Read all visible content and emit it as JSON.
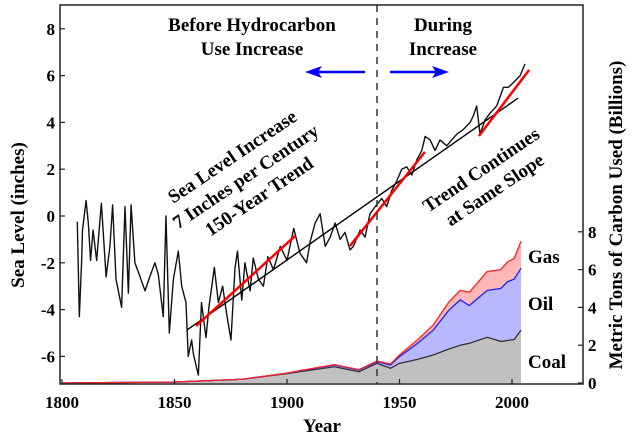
{
  "chart_data": [
    {
      "type": "line",
      "xlabel": "Year",
      "ylabel": "Sea Level (inches)",
      "xlim": [
        1800,
        2032
      ],
      "ylim": [
        -7.2,
        9
      ],
      "xticks": [
        "1800",
        "1850",
        "1900",
        "1950",
        "2000"
      ],
      "yticks": [
        "-6",
        "-4",
        "-2",
        "0",
        "2",
        "4",
        "6",
        "8"
      ],
      "grid": false,
      "sea_level": {
        "x": [
          1806.8,
          1807.7,
          1808.7,
          1809.1,
          1810.7,
          1811.7,
          1812.7,
          1813.8,
          1815.4,
          1817.5,
          1819.6,
          1821.3,
          1822.5,
          1824,
          1826.5,
          1828,
          1829.5,
          1830.7,
          1832.4,
          1834.7,
          1836.9,
          1839,
          1841.3,
          1842.8,
          1845,
          1846.2,
          1847.7,
          1849.5,
          1851.7,
          1853.2,
          1855.1,
          1856.1,
          1857.6,
          1858.4,
          1860.6,
          1862,
          1864,
          1865.3,
          1867.7,
          1869.5,
          1871.4,
          1873.2,
          1875.1,
          1876.9,
          1878,
          1879.9,
          1881.3,
          1883.6,
          1885,
          1887.3,
          1889.5,
          1891.5,
          1894,
          1897,
          1900,
          1903,
          1905.8,
          1908.7,
          1910.3,
          1912.5,
          1914.7,
          1917,
          1919.2,
          1921.4,
          1923.6,
          1925.8,
          1928,
          1929.5,
          1932.5,
          1934.7,
          1936.9,
          1939.2,
          1942.1,
          1944.3,
          1946.6,
          1948.8,
          1951,
          1953.2,
          1955.5,
          1957.7,
          1959.9,
          1961.4,
          1963.6,
          1965.8,
          1968,
          1971,
          1973.2,
          1975.5,
          1978.4,
          1981.4,
          1982.9,
          1984.3,
          1985.8,
          1988,
          1990.3,
          1993.2,
          1996.2,
          1998.4,
          2000.6,
          2003.6,
          2005.8
        ],
        "y": [
          -0.24,
          -4.3,
          -2.0,
          -0.6,
          0.66,
          -0.3,
          -1.9,
          -0.6,
          -1.9,
          0.54,
          -2.6,
          -1.3,
          0.47,
          -2.7,
          -3.9,
          0.4,
          -3.3,
          0.47,
          -2.0,
          -2.6,
          -3.2,
          -2.6,
          -2.0,
          -2.5,
          -4.3,
          0.0,
          -5.0,
          -2.7,
          -1.5,
          -3.0,
          -3.7,
          -6.0,
          -5.3,
          -5.9,
          -6.8,
          -3.7,
          -5.2,
          -3.9,
          -2.2,
          -3.7,
          -3.0,
          -4.2,
          -5.3,
          -2.2,
          -1.5,
          -3.6,
          -2.0,
          -3.2,
          -1.8,
          -2.7,
          -3.0,
          -1.74,
          -2.3,
          -1.3,
          -1.9,
          -0.53,
          -1.6,
          -2.0,
          -1.1,
          -0.3,
          0.1,
          -1.3,
          -0.9,
          -0.3,
          -1.0,
          -0.7,
          -1.45,
          -1.3,
          -0.6,
          -0.9,
          0.1,
          0.4,
          0.75,
          0.4,
          1.1,
          1.5,
          2.0,
          2.1,
          1.75,
          2.4,
          2.8,
          3.4,
          3.25,
          2.8,
          3.25,
          3.0,
          3.25,
          3.5,
          3.7,
          4.0,
          4.3,
          4.7,
          3.5,
          4.1,
          4.4,
          4.7,
          5.5,
          5.5,
          5.7,
          6.0,
          6.5
        ]
      },
      "trend_line": {
        "x": [
          1855.6,
          2002.7
        ],
        "y": [
          -4.87,
          5.04
        ]
      },
      "segment_trends": [
        {
          "x": [
            1859.6,
            1903.6
          ],
          "y": [
            -4.7,
            -0.85
          ]
        },
        {
          "x": [
            1928,
            1961.3
          ],
          "y": [
            -1.28,
            2.74
          ]
        },
        {
          "x": [
            1985.3,
            2007.6
          ],
          "y": [
            3.42,
            6.24
          ]
        }
      ],
      "divider_year": 1940,
      "annotations": {
        "before_line1": "Before Hydrocarbon",
        "before_line2": "Use Increase",
        "during_line1": "During",
        "during_line2": "Increase",
        "trend_line1": "Sea Level Increase",
        "trend_line2": "7 Inches per Century",
        "trend_line3": "150-Year Trend",
        "continue_line1": "Trend Continues",
        "continue_line2": "at Same Slope"
      },
      "colors": {
        "sea_level": "#000000",
        "segment_trend": "#ff0000",
        "arrows": "#0000ff"
      }
    },
    {
      "type": "area",
      "stacked": true,
      "ylabel": "Metric Tons of Carbon Used (Billions)",
      "ylim": [
        0,
        8
      ],
      "yticks": [
        "0",
        "2",
        "4",
        "6",
        "8"
      ],
      "x": [
        1800,
        1850,
        1880,
        1900,
        1906,
        1921,
        1932,
        1940,
        1946,
        1950,
        1958,
        1965,
        1972,
        1977,
        1981,
        1989,
        1995,
        1998,
        2001,
        2004
      ],
      "series": [
        {
          "name": "Coal",
          "color": "#c0c0c0",
          "line": "#333333",
          "values": [
            0,
            0.05,
            0.2,
            0.5,
            0.6,
            0.86,
            0.6,
            1.04,
            0.78,
            1.04,
            1.25,
            1.48,
            1.8,
            2.0,
            2.1,
            2.42,
            2.2,
            2.25,
            2.3,
            2.8
          ]
        },
        {
          "name": "Oil",
          "color": "#b8b8ff",
          "line": "#2020ff",
          "values": [
            0,
            0,
            0,
            0.02,
            0.05,
            0.09,
            0.09,
            0.09,
            0.17,
            0.36,
            0.85,
            1.32,
            2.06,
            2.4,
            2.0,
            2.48,
            2.8,
            3.11,
            3.2,
            3.27
          ]
        },
        {
          "name": "Gas",
          "color": "#ffb8b8",
          "line": "#ff2020",
          "values": [
            0,
            0,
            0,
            0,
            0.01,
            0.02,
            0.02,
            0.03,
            0.05,
            0.08,
            0.18,
            0.27,
            0.44,
            0.5,
            0.7,
            1.0,
            1.0,
            1.04,
            1.1,
            1.43
          ]
        }
      ]
    }
  ]
}
